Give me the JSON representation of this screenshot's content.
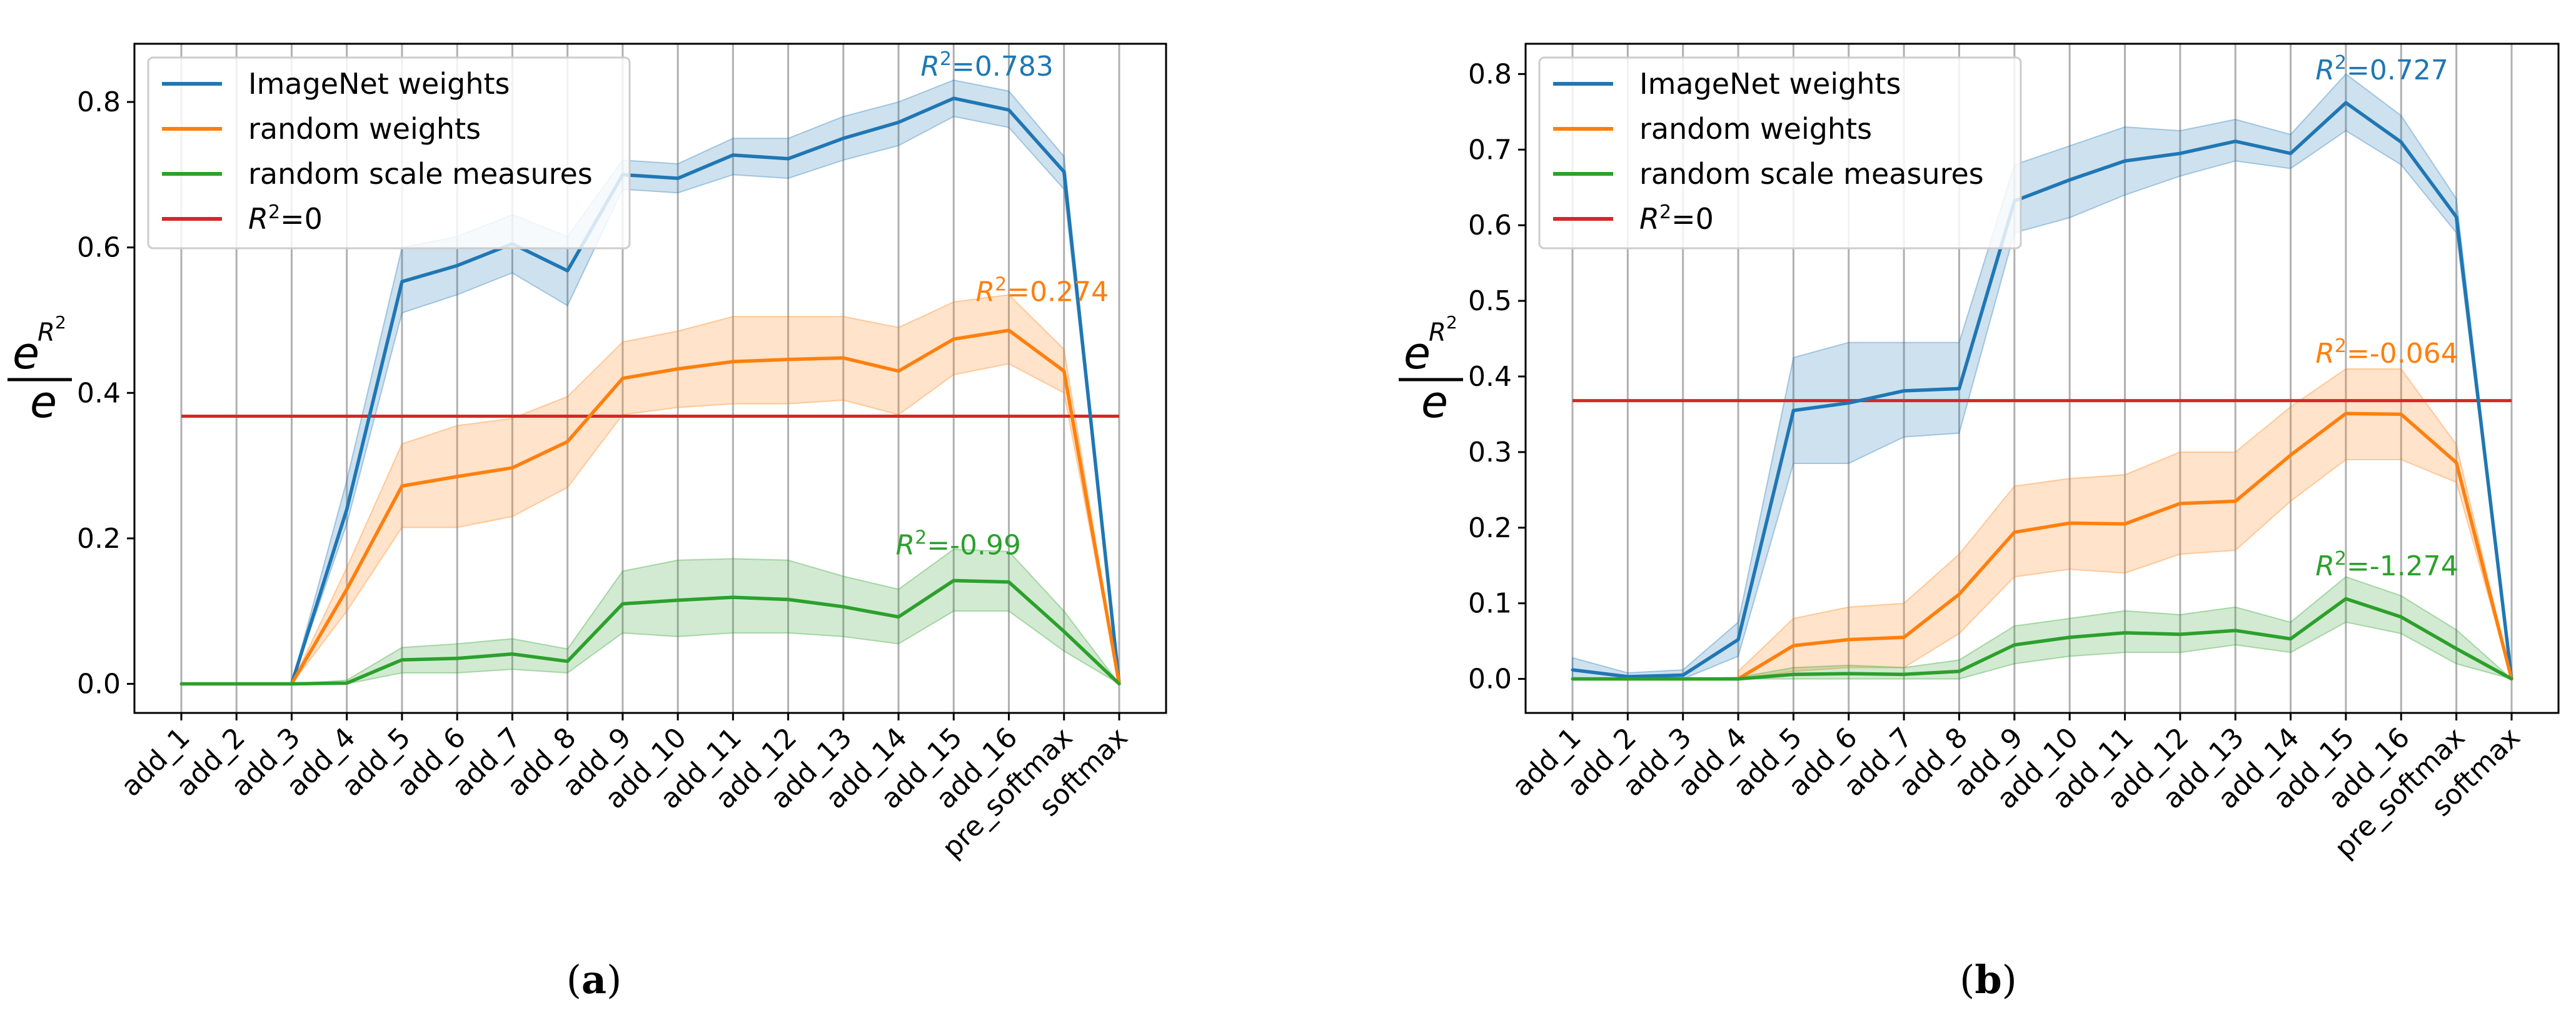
{
  "figure": {
    "panels": [
      "(a)",
      "(b)"
    ]
  },
  "colors": {
    "imagenet": "#1f77b4",
    "random": "#ff7f0e",
    "scale": "#2ca02c",
    "baseline": "#d62728",
    "grid": "#b0b0b0",
    "axis": "#000000"
  },
  "chart_data": [
    {
      "type": "line",
      "panel_label": "(a)",
      "ylabel": "e^{R²}/e",
      "ylim": [
        -0.04,
        0.88
      ],
      "yticks": [
        0.0,
        0.2,
        0.4,
        0.6,
        0.8
      ],
      "ytick_labels": [
        "0.0",
        "0.2",
        "0.4",
        "0.6",
        "0.8"
      ],
      "categories": [
        "add_1",
        "add_2",
        "add_3",
        "add_4",
        "add_5",
        "add_6",
        "add_7",
        "add_8",
        "add_9",
        "add_10",
        "add_11",
        "add_12",
        "add_13",
        "add_14",
        "add_15",
        "add_16",
        "pre_softmax",
        "softmax"
      ],
      "grid": "vertical",
      "legend": {
        "position": "top-left",
        "entries": [
          "ImageNet weights",
          "random weights",
          "random scale measures",
          "R²=0"
        ]
      },
      "series": [
        {
          "name": "ImageNet weights",
          "color_key": "imagenet",
          "values": [
            null,
            null,
            0.0,
            0.24,
            0.553,
            0.575,
            0.605,
            0.568,
            0.7,
            0.695,
            0.727,
            0.722,
            0.75,
            0.772,
            0.805,
            0.789,
            0.704,
            0.0
          ],
          "lower": [
            null,
            null,
            0.0,
            0.22,
            0.51,
            0.535,
            0.565,
            0.52,
            0.68,
            0.675,
            0.7,
            0.695,
            0.72,
            0.74,
            0.78,
            0.765,
            0.68,
            0.0
          ],
          "upper": [
            null,
            null,
            0.0,
            0.28,
            0.6,
            0.615,
            0.645,
            0.615,
            0.72,
            0.715,
            0.75,
            0.75,
            0.78,
            0.8,
            0.83,
            0.815,
            0.725,
            0.0
          ],
          "annotation": {
            "text": "0.783",
            "x": 13.4,
            "y": 0.836
          }
        },
        {
          "name": "random weights",
          "color_key": "random",
          "values": [
            null,
            null,
            0.0,
            0.13,
            0.272,
            0.285,
            0.297,
            0.333,
            0.42,
            0.433,
            0.443,
            0.446,
            0.448,
            0.43,
            0.474,
            0.486,
            0.43,
            0.0
          ],
          "lower": [
            null,
            null,
            0.0,
            0.1,
            0.215,
            0.215,
            0.23,
            0.27,
            0.37,
            0.38,
            0.385,
            0.385,
            0.39,
            0.37,
            0.425,
            0.44,
            0.4,
            0.0
          ],
          "upper": [
            null,
            null,
            0.0,
            0.16,
            0.33,
            0.355,
            0.365,
            0.395,
            0.47,
            0.485,
            0.505,
            0.505,
            0.505,
            0.49,
            0.525,
            0.535,
            0.46,
            0.0
          ],
          "annotation": {
            "text": "0.274",
            "x": 14.4,
            "y": 0.526
          }
        },
        {
          "name": "random scale measures",
          "color_key": "scale",
          "values": [
            0.0,
            0.0,
            0.0,
            0.001,
            0.033,
            0.035,
            0.041,
            0.031,
            0.11,
            0.115,
            0.119,
            0.116,
            0.106,
            0.092,
            0.142,
            0.14,
            0.072,
            0.0
          ],
          "lower": [
            0.0,
            0.0,
            0.0,
            0.0,
            0.015,
            0.015,
            0.02,
            0.015,
            0.07,
            0.065,
            0.07,
            0.07,
            0.065,
            0.055,
            0.1,
            0.1,
            0.045,
            0.0
          ],
          "upper": [
            0.0,
            0.0,
            0.0,
            0.005,
            0.05,
            0.055,
            0.062,
            0.048,
            0.155,
            0.17,
            0.172,
            0.17,
            0.148,
            0.13,
            0.185,
            0.182,
            0.1,
            0.0
          ],
          "annotation": {
            "text": "-0.99",
            "x": 12.95,
            "y": 0.178
          }
        }
      ],
      "baseline": {
        "name": "R²=0",
        "color_key": "baseline",
        "value": 0.368
      }
    },
    {
      "type": "line",
      "panel_label": "(b)",
      "ylabel": "e^{R²}/e",
      "ylim": [
        -0.045,
        0.84
      ],
      "yticks": [
        0.0,
        0.1,
        0.2,
        0.3,
        0.4,
        0.5,
        0.6,
        0.7,
        0.8
      ],
      "ytick_labels": [
        "0.0",
        "0.1",
        "0.2",
        "0.3",
        "0.4",
        "0.5",
        "0.6",
        "0.7",
        "0.8"
      ],
      "categories": [
        "add_1",
        "add_2",
        "add_3",
        "add_4",
        "add_5",
        "add_6",
        "add_7",
        "add_8",
        "add_9",
        "add_10",
        "add_11",
        "add_12",
        "add_13",
        "add_14",
        "add_15",
        "add_16",
        "pre_softmax",
        "softmax"
      ],
      "grid": "vertical",
      "legend": {
        "position": "top-left",
        "entries": [
          "ImageNet weights",
          "random weights",
          "random scale measures",
          "R²=0"
        ]
      },
      "series": [
        {
          "name": "ImageNet weights",
          "color_key": "imagenet",
          "values": [
            0.012,
            0.003,
            0.005,
            0.052,
            0.355,
            0.365,
            0.381,
            0.384,
            0.632,
            0.66,
            0.685,
            0.695,
            0.711,
            0.695,
            0.762,
            0.71,
            0.611,
            0.0
          ],
          "lower": [
            0.0,
            0.0,
            0.0,
            0.03,
            0.285,
            0.285,
            0.32,
            0.325,
            0.59,
            0.61,
            0.64,
            0.665,
            0.685,
            0.675,
            0.725,
            0.68,
            0.59,
            0.0
          ],
          "upper": [
            0.028,
            0.008,
            0.012,
            0.075,
            0.425,
            0.445,
            0.445,
            0.445,
            0.68,
            0.705,
            0.73,
            0.725,
            0.74,
            0.72,
            0.8,
            0.745,
            0.635,
            0.0
          ],
          "annotation": {
            "text": "0.727",
            "x": 13.45,
            "y": 0.793
          }
        },
        {
          "name": "random weights",
          "color_key": "random",
          "values": [
            null,
            null,
            null,
            0.0,
            0.044,
            0.052,
            0.055,
            0.112,
            0.194,
            0.206,
            0.205,
            0.232,
            0.235,
            0.296,
            0.351,
            0.35,
            0.286,
            0.0
          ],
          "lower": [
            null,
            null,
            null,
            0.0,
            0.01,
            0.015,
            0.015,
            0.06,
            0.135,
            0.145,
            0.14,
            0.165,
            0.17,
            0.235,
            0.29,
            0.29,
            0.26,
            0.0
          ],
          "upper": [
            null,
            null,
            null,
            0.01,
            0.08,
            0.095,
            0.1,
            0.165,
            0.255,
            0.265,
            0.27,
            0.3,
            0.3,
            0.36,
            0.41,
            0.41,
            0.31,
            0.0
          ],
          "annotation": {
            "text": "-0.064",
            "x": 13.45,
            "y": 0.418
          }
        },
        {
          "name": "random scale measures",
          "color_key": "scale",
          "values": [
            0.0,
            0.0,
            0.0,
            0.0,
            0.006,
            0.007,
            0.006,
            0.01,
            0.045,
            0.055,
            0.061,
            0.059,
            0.064,
            0.053,
            0.106,
            0.082,
            0.04,
            0.0
          ],
          "lower": [
            0.0,
            0.0,
            0.0,
            0.0,
            0.0,
            0.0,
            0.0,
            0.0,
            0.02,
            0.03,
            0.035,
            0.035,
            0.045,
            0.035,
            0.075,
            0.06,
            0.02,
            0.0
          ],
          "upper": [
            0.0,
            0.0,
            0.0,
            0.002,
            0.015,
            0.018,
            0.015,
            0.025,
            0.07,
            0.08,
            0.09,
            0.085,
            0.095,
            0.075,
            0.135,
            0.11,
            0.065,
            0.0
          ],
          "annotation": {
            "text": "-1.274",
            "x": 13.45,
            "y": 0.137
          }
        }
      ],
      "baseline": {
        "name": "R²=0",
        "color_key": "baseline",
        "value": 0.368
      }
    }
  ]
}
